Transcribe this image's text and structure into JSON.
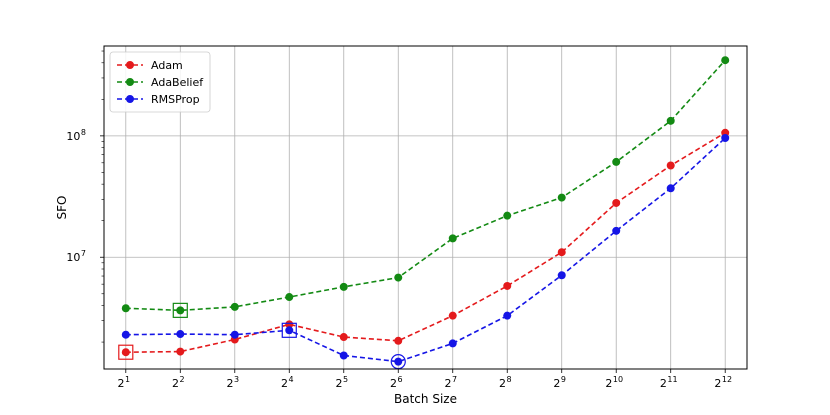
{
  "chart_data": {
    "type": "line",
    "xlabel": "Batch Size",
    "ylabel": "SFO",
    "x_scale": "log2",
    "y_scale": "log10",
    "x_exponents": [
      1,
      2,
      3,
      4,
      5,
      6,
      7,
      8,
      9,
      10,
      11,
      12
    ],
    "x": [
      2,
      4,
      8,
      16,
      32,
      64,
      128,
      256,
      512,
      1024,
      2048,
      4096
    ],
    "x_tick_labels": [
      {
        "base": "2",
        "exp": "1"
      },
      {
        "base": "2",
        "exp": "2"
      },
      {
        "base": "2",
        "exp": "3"
      },
      {
        "base": "2",
        "exp": "4"
      },
      {
        "base": "2",
        "exp": "5"
      },
      {
        "base": "2",
        "exp": "6"
      },
      {
        "base": "2",
        "exp": "7"
      },
      {
        "base": "2",
        "exp": "8"
      },
      {
        "base": "2",
        "exp": "9"
      },
      {
        "base": "2",
        "exp": "10"
      },
      {
        "base": "2",
        "exp": "11"
      },
      {
        "base": "2",
        "exp": "12"
      }
    ],
    "y_tick_labels": [
      {
        "value": 10000000,
        "base": "10",
        "exp": "7"
      },
      {
        "value": 100000000,
        "base": "10",
        "exp": "8"
      }
    ],
    "ylim": [
      1200000,
      550000000
    ],
    "grid": true,
    "legend_position": "upper-left",
    "series": [
      {
        "name": "Adam",
        "color": "#e41a1c",
        "values": [
          1650000,
          1670000,
          2100000,
          2800000,
          2200000,
          2050000,
          3300000,
          5800000,
          11000000,
          28000000,
          57000000,
          106000000
        ],
        "highlight_index": 0,
        "highlight_marker": "square"
      },
      {
        "name": "AdaBelief",
        "color": "#138a13",
        "values": [
          3800000,
          3650000,
          3900000,
          4700000,
          5700000,
          6800000,
          14300000,
          22000000,
          31000000,
          61000000,
          133000000,
          420000000
        ],
        "highlight_index": 1,
        "highlight_marker": "square"
      },
      {
        "name": "RMSProp",
        "color": "#1515e6",
        "values": [
          2300000,
          2330000,
          2300000,
          2500000,
          1550000,
          1380000,
          1950000,
          3300000,
          7100000,
          16500000,
          37000000,
          96000000
        ],
        "highlight_index": 5,
        "highlight_marker": "circle"
      }
    ]
  },
  "extra_markers": [
    {
      "series": "RMSProp",
      "x_index": 3,
      "shape": "square"
    }
  ]
}
